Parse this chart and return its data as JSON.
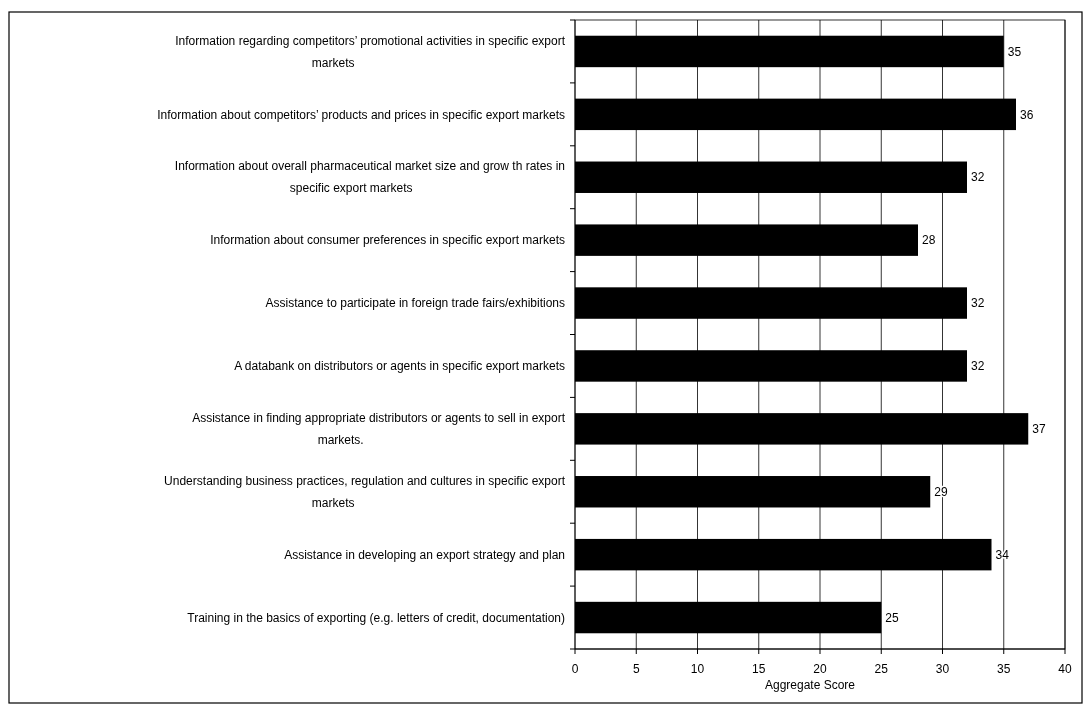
{
  "chart_data": {
    "type": "bar",
    "orientation": "horizontal",
    "xlabel": "Aggregate Score",
    "categories": [
      "Information regarding competitors’ promotional activities in specific export markets",
      "Information about competitors’ products and prices in specific export markets",
      "Information about overall pharmaceutical market size and grow th rates in specific export markets",
      "Information about consumer preferences in specific export markets",
      "Assistance to participate in foreign trade fairs/exhibitions",
      "A databank on distributors or agents in specific export markets",
      "Assistance in finding appropriate distributors or agents to sell in export markets.",
      "Understanding business practices, regulation and cultures in specific export markets",
      "Assistance in developing an export strategy and plan",
      "Training in the basics of exporting (e.g. letters of credit, documentation)"
    ],
    "values": [
      35,
      36,
      32,
      28,
      32,
      32,
      37,
      29,
      34,
      25
    ],
    "color": "#000000",
    "xlim": [
      0,
      40
    ],
    "xticks": [
      0,
      5,
      10,
      15,
      20,
      25,
      30,
      35,
      40
    ],
    "grid": "x",
    "data_labels": true
  }
}
